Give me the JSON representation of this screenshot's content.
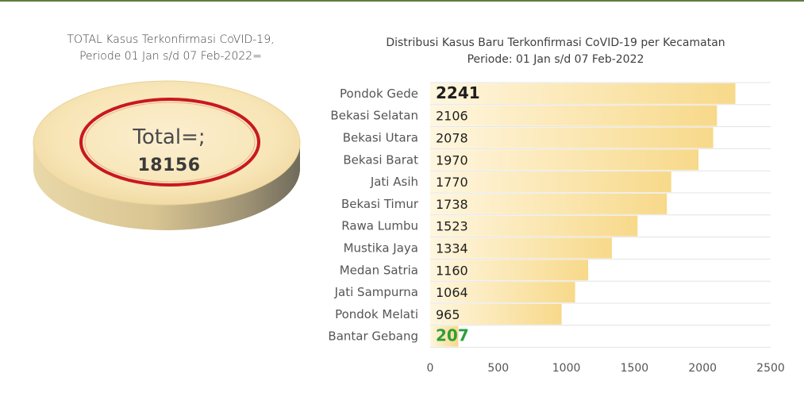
{
  "left_panel": {
    "title_line1": "TOTAL  Kasus Terkonfirmasi CoVID-19,",
    "title_line2": "Periode 01 Jan s/d 07 Feb-2022=",
    "total_label": "Total=;",
    "total_value": "18156",
    "colors": {
      "disc_top": "#f6e3b1",
      "disc_side": "#b7a884",
      "ring": "#c8191e"
    }
  },
  "chart_data": {
    "type": "bar",
    "orientation": "horizontal",
    "title_line1": "Distribusi  Kasus Baru Terkonfirmasi CoVID-19 per Kecamatan",
    "title_line2": "Periode: 01 Jan s/d 07 Feb-2022",
    "categories": [
      "Pondok Gede",
      "Bekasi Selatan",
      "Bekasi Utara",
      "Bekasi Barat",
      "Jati Asih",
      "Bekasi Timur",
      "Rawa Lumbu",
      "Mustika Jaya",
      "Medan Satria",
      "Jati Sampurna",
      "Pondok Melati",
      "Bantar Gebang"
    ],
    "values": [
      2241,
      2106,
      2078,
      1970,
      1770,
      1738,
      1523,
      1334,
      1160,
      1064,
      965,
      207
    ],
    "xlim": [
      0,
      2500
    ],
    "xticks": [
      0,
      500,
      1000,
      1500,
      2000,
      2500
    ],
    "grid": true,
    "highlight": {
      "max_index": 0,
      "min_index": 11,
      "min_color": "#2e9e3c"
    },
    "bar_color_start": "#fff6df",
    "bar_color_end": "#f7d98a"
  }
}
